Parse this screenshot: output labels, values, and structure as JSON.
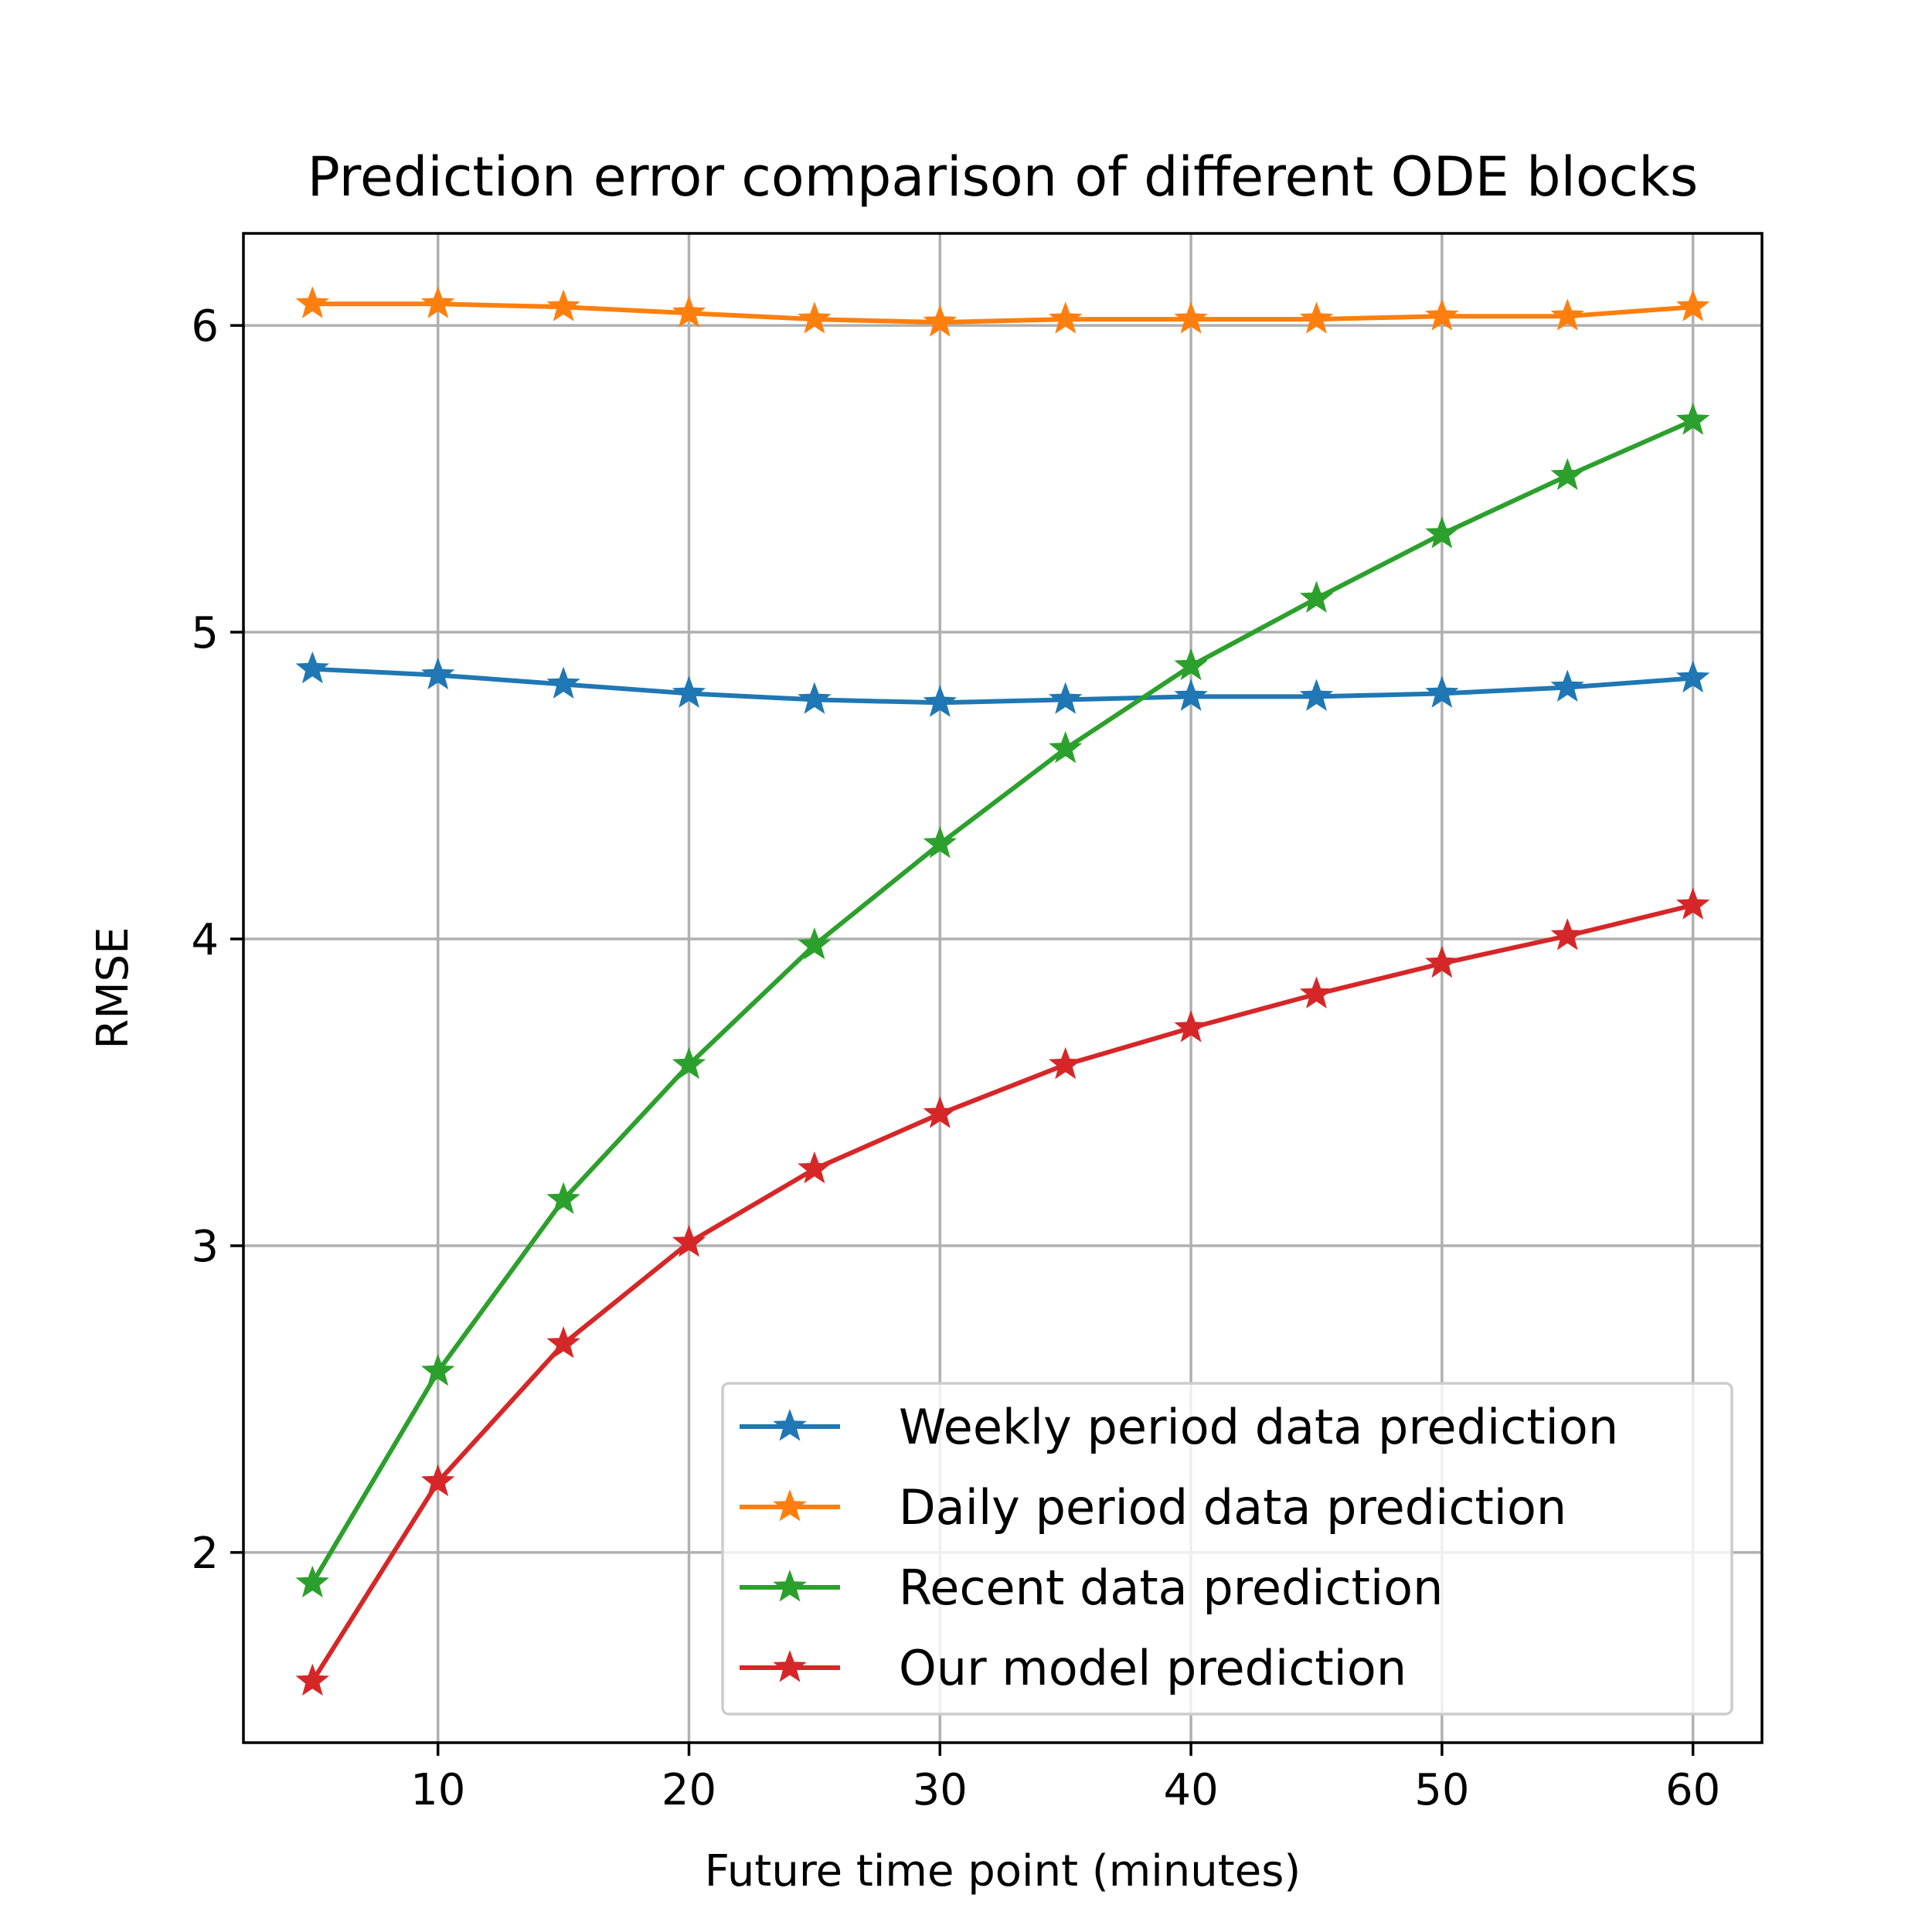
{
  "chart_data": {
    "type": "line",
    "title": "Prediction error comparison of different ODE blocks",
    "xlabel": "Future time point (minutes)",
    "ylabel": "RMSE",
    "xlim": [
      2.25,
      62.75
    ],
    "ylim": [
      1.38,
      6.3
    ],
    "xticks": [
      10,
      20,
      30,
      40,
      50,
      60
    ],
    "yticks": [
      2,
      3,
      4,
      5,
      6
    ],
    "grid": true,
    "legend_position": "lower right",
    "marker": "star",
    "x": [
      5,
      10,
      15,
      20,
      25,
      30,
      35,
      40,
      45,
      50,
      55,
      60
    ],
    "series": [
      {
        "name": "Weekly period data prediction",
        "color": "#1f77b4",
        "values": [
          4.88,
          4.86,
          4.83,
          4.8,
          4.78,
          4.77,
          4.78,
          4.79,
          4.79,
          4.8,
          4.82,
          4.85
        ]
      },
      {
        "name": "Daily period data prediction",
        "color": "#ff7f0e",
        "values": [
          6.07,
          6.07,
          6.06,
          6.04,
          6.02,
          6.01,
          6.02,
          6.02,
          6.02,
          6.03,
          6.03,
          6.06
        ]
      },
      {
        "name": "Recent data prediction",
        "color": "#2ca02c",
        "values": [
          1.9,
          2.59,
          3.15,
          3.59,
          3.98,
          4.31,
          4.62,
          4.89,
          5.11,
          5.32,
          5.51,
          5.69
        ]
      },
      {
        "name": "Our model prediction",
        "color": "#d62728",
        "values": [
          1.58,
          2.23,
          2.68,
          3.01,
          3.25,
          3.43,
          3.59,
          3.71,
          3.82,
          3.92,
          4.01,
          4.11
        ]
      }
    ]
  }
}
